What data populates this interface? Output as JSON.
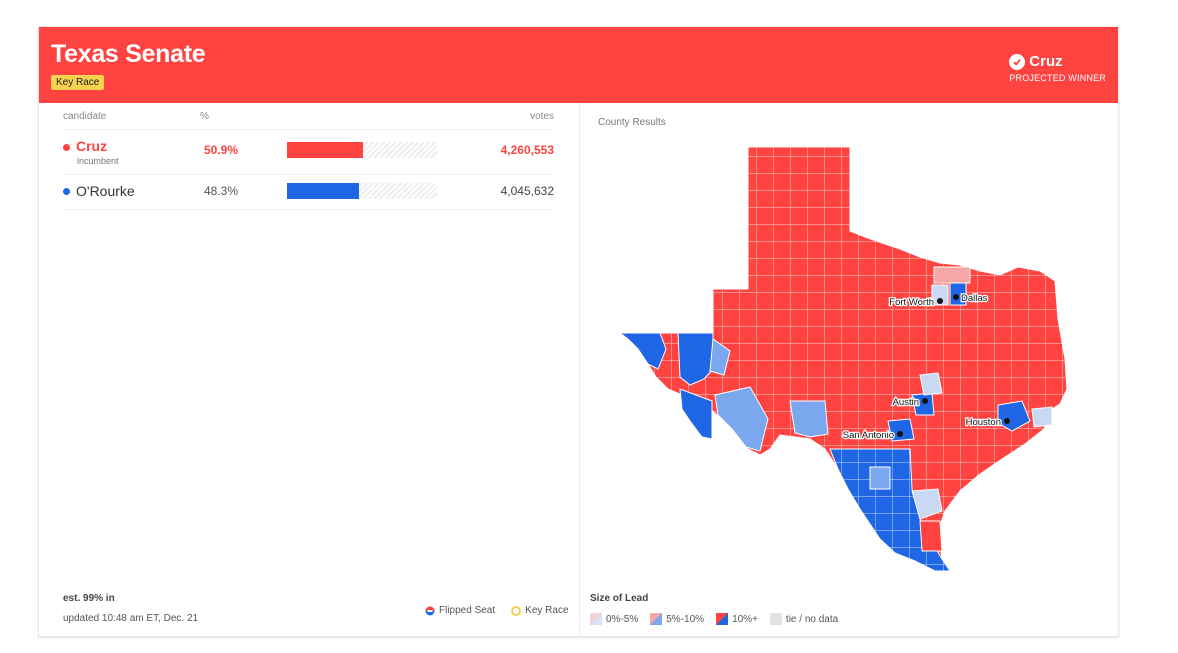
{
  "header": {
    "title": "Texas Senate",
    "badge": "Key Race",
    "winner_name": "Cruz",
    "winner_label": "PROJECTED WINNER"
  },
  "table": {
    "col_candidate": "candidate",
    "col_pct": "%",
    "col_votes": "votes",
    "rows": [
      {
        "name": "Cruz",
        "sub": "incumbent",
        "pct": "50.9%",
        "pct_value": 50.9,
        "votes": "4,260,553",
        "color": "#fe4340"
      },
      {
        "name": "O'Rourke",
        "sub": "",
        "pct": "48.3%",
        "pct_value": 48.3,
        "votes": "4,045,632",
        "color": "#1f66e5"
      }
    ]
  },
  "footer": {
    "est": "est. 99% in",
    "updated": "updated 10:48 am ET, Dec. 21",
    "flipped": "Flipped Seat",
    "key_race": "Key Race"
  },
  "map": {
    "title": "County Results",
    "cities": [
      "Fort Worth",
      "Dallas",
      "Austin",
      "Houston",
      "San Antonio"
    ],
    "lead_title": "Size of Lead",
    "lead_items": [
      "0%-5%",
      "5%-10%",
      "10%+",
      "tie / no data"
    ]
  },
  "colors": {
    "red": "#fe4340",
    "blue": "#1f66e5",
    "light_red": "#f7a6a6",
    "light_blue": "#7aa7ee",
    "pale_blue": "#c9d8f3",
    "key_yellow": "#f8d350"
  }
}
